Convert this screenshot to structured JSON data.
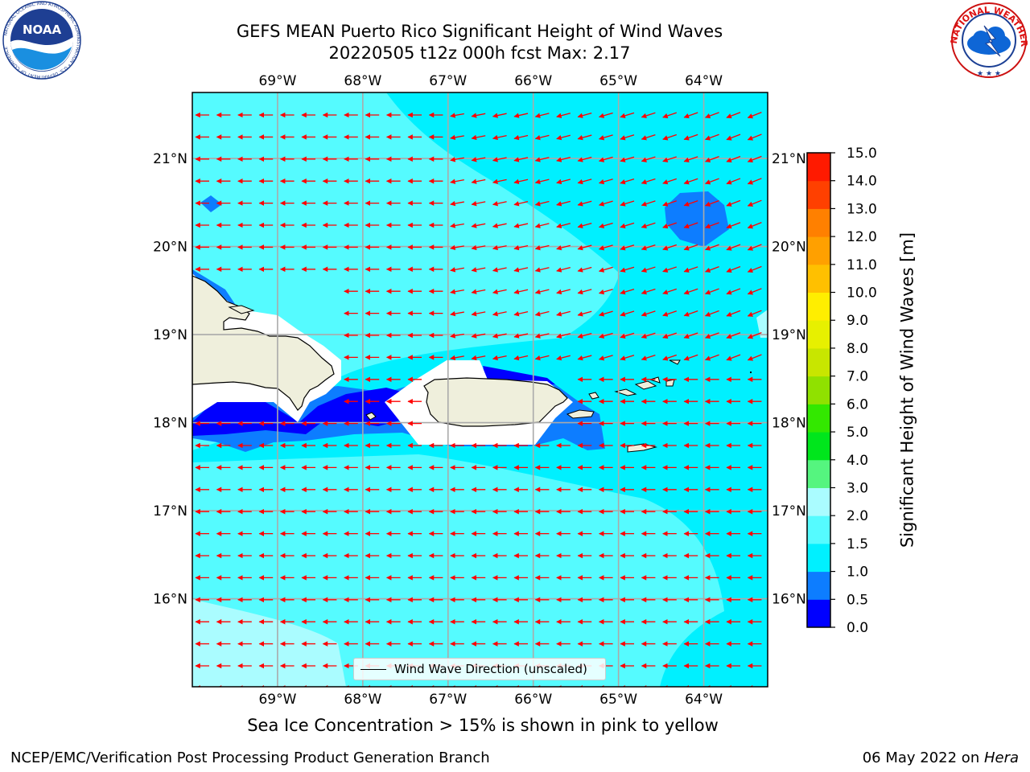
{
  "title": {
    "line1": "GEFS MEAN Puerto Rico Significant Height of Wind Waves",
    "line2": "20220505 t12z 000h fcst   Max: 2.17"
  },
  "map": {
    "lon_ticks": [
      "69°W",
      "68°W",
      "67°W",
      "66°W",
      "65°W",
      "64°W"
    ],
    "lat_ticks": [
      "21°N",
      "20°N",
      "19°N",
      "18°N",
      "17°N",
      "16°N"
    ],
    "lon_range": [
      -70.0,
      -63.25
    ],
    "lat_range": [
      15.0,
      21.75
    ],
    "grid": true,
    "arrow_color": "#ff0000",
    "land_color": "#efefdc",
    "legend": {
      "label": "Wind Wave Direction (unscaled)",
      "placement": "lower-center"
    }
  },
  "colorbar": {
    "label": "Significant Height of Wind Waves [m]",
    "ticks": [
      "15.0",
      "14.0",
      "13.0",
      "12.0",
      "11.0",
      "10.0",
      "9.0",
      "8.0",
      "7.0",
      "6.0",
      "5.0",
      "4.0",
      "3.0",
      "2.0",
      "1.5",
      "1.0",
      "0.5",
      "0.0"
    ],
    "levels": [
      0,
      0.5,
      1,
      1.5,
      2,
      3,
      4,
      5,
      6,
      7,
      8,
      9,
      10,
      11,
      12,
      13,
      14,
      15
    ],
    "colors": [
      "#0000ff",
      "#0d7dff",
      "#00f0ff",
      "#55fbff",
      "#aafcff",
      "#55f57f",
      "#00e61c",
      "#33e800",
      "#90e100",
      "#c8e600",
      "#e7f000",
      "#ffee00",
      "#ffc000",
      "#ffa000",
      "#ff8000",
      "#ff4000",
      "#ff1a00"
    ]
  },
  "logos": {
    "noaa": {
      "text": "NOAA",
      "ring": "NATIONAL OCEANIC AND ATMOSPHERIC ADMINISTRATION • U.S. DEPARTMENT OF COMMERCE"
    },
    "nws": {
      "ring": "NATIONAL WEATHER SERVICE"
    }
  },
  "footer": {
    "sea_ice_note": "Sea Ice Concentration > 15% is shown in pink to yellow",
    "left": "NCEP/EMC/Verification Post Processing Product Generation Branch",
    "right_prefix": "06 May 2022 on ",
    "right_machine": "Hera"
  }
}
